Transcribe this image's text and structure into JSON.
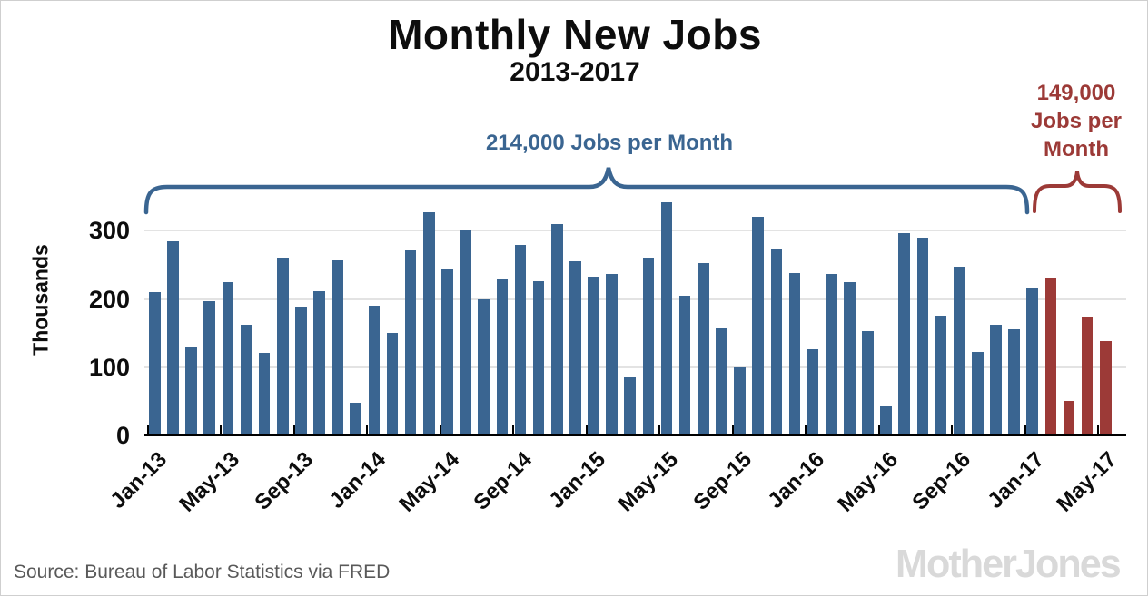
{
  "title": "Monthly New Jobs",
  "subtitle": "2013-2017",
  "annotations": {
    "blue_label": "214,000 Jobs per Month",
    "red_label_lines": [
      "149,000",
      "Jobs per",
      "Month"
    ]
  },
  "footer": {
    "source": "Source: Bureau of Labor Statistics via FRED",
    "logo": "MotherJones"
  },
  "colors": {
    "blue": "#3A6591",
    "red": "#9C3A37",
    "gridline": "#E3E3E3",
    "axis": "#000000",
    "source_text": "#595959",
    "logo": "#D9D9D9"
  },
  "chart_data": {
    "type": "bar",
    "title": "Monthly New Jobs",
    "subtitle": "2013-2017",
    "ylabel": "Thousands",
    "yticks": [
      0,
      100,
      200,
      300
    ],
    "ylim": [
      0,
      350
    ],
    "grid": true,
    "legend": false,
    "x_start": "Jan-13",
    "x_end": "May-17",
    "frequency": "monthly",
    "tick_labels": [
      "Jan-13",
      "May-13",
      "Sep-13",
      "Jan-14",
      "May-14",
      "Sep-14",
      "Jan-15",
      "May-15",
      "Sep-15",
      "Jan-16",
      "May-16",
      "Sep-16",
      "Jan-17",
      "May-17"
    ],
    "values": [
      210,
      285,
      130,
      197,
      225,
      162,
      121,
      260,
      189,
      211,
      257,
      48,
      190,
      150,
      271,
      327,
      245,
      302,
      200,
      229,
      279,
      226,
      310,
      255,
      233,
      237,
      85,
      261,
      342,
      205,
      253,
      157,
      100,
      320,
      272,
      238,
      126,
      237,
      225,
      153,
      43,
      296,
      290,
      175,
      247,
      123,
      162,
      155,
      215,
      232,
      50,
      174,
      138
    ],
    "red_start_index": 49,
    "segments": [
      {
        "label": "214,000 Jobs per Month",
        "from": "Jan-13",
        "to": "Jan-17",
        "color": "blue",
        "average": 214000
      },
      {
        "label": "149,000 Jobs per Month",
        "from": "Feb-17",
        "to": "May-17",
        "color": "red",
        "average": 149000
      }
    ]
  }
}
